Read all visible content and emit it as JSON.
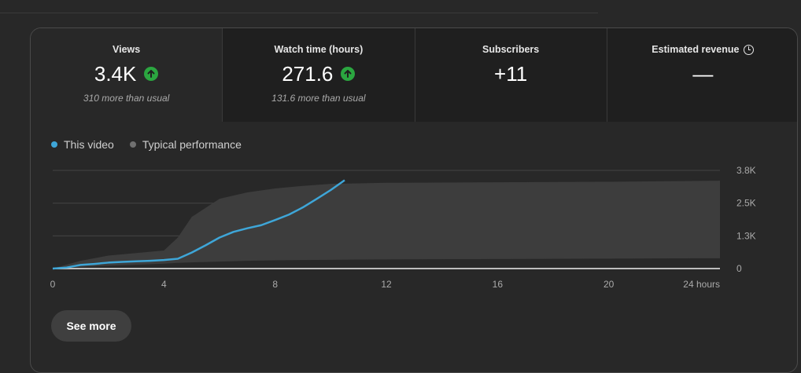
{
  "metrics": [
    {
      "label": "Views",
      "value": "3.4K",
      "sub": "310 more than usual",
      "trend": "up",
      "selected": true
    },
    {
      "label": "Watch time (hours)",
      "value": "271.6",
      "sub": "131.6 more than usual",
      "trend": "up",
      "selected": false
    },
    {
      "label": "Subscribers",
      "value": "+11",
      "sub": "",
      "trend": "",
      "selected": false
    },
    {
      "label": "Estimated revenue",
      "value": "—",
      "sub": "",
      "trend": "",
      "selected": false,
      "icon": "clock-icon"
    }
  ],
  "legend": {
    "this_video": "This video",
    "typical": "Typical performance"
  },
  "colors": {
    "this_video": "#3ea6d8",
    "typical_band": "#3d3d3d",
    "trend_up": "#2ba640"
  },
  "chart_data": {
    "type": "area",
    "x_tick_labels": [
      "0",
      "4",
      "8",
      "12",
      "16",
      "20",
      "24 hours"
    ],
    "x_ticks": [
      0,
      4,
      8,
      12,
      16,
      20,
      24
    ],
    "y_tick_labels": [
      "0",
      "1.3K",
      "2.5K",
      "3.8K"
    ],
    "y_ticks": [
      0,
      1266,
      2532,
      3800
    ],
    "xlim": [
      0,
      24
    ],
    "ylim": [
      0,
      3800
    ],
    "grid": true,
    "series": [
      {
        "name": "This video",
        "x": [
          0,
          0.5,
          1,
          1.5,
          2,
          2.5,
          3,
          3.5,
          4,
          4.5,
          5,
          5.5,
          6,
          6.5,
          7,
          7.5,
          8,
          8.5,
          9,
          9.5,
          10,
          10.5
        ],
        "y": [
          0,
          40,
          140,
          180,
          230,
          260,
          280,
          300,
          330,
          380,
          620,
          900,
          1200,
          1420,
          1560,
          1680,
          1880,
          2090,
          2370,
          2700,
          3040,
          3420
        ]
      },
      {
        "name": "Typical performance",
        "x": [
          0,
          1,
          2,
          3,
          4,
          4.5,
          5,
          6,
          7,
          8,
          9,
          10,
          11,
          12,
          16,
          20,
          24
        ],
        "low": [
          0,
          60,
          110,
          150,
          190,
          220,
          240,
          270,
          300,
          320,
          330,
          340,
          350,
          355,
          370,
          385,
          400
        ],
        "high": [
          0,
          300,
          500,
          600,
          700,
          1200,
          2000,
          2700,
          2950,
          3100,
          3200,
          3280,
          3300,
          3320,
          3340,
          3360,
          3400
        ]
      }
    ]
  },
  "see_more": "See more"
}
